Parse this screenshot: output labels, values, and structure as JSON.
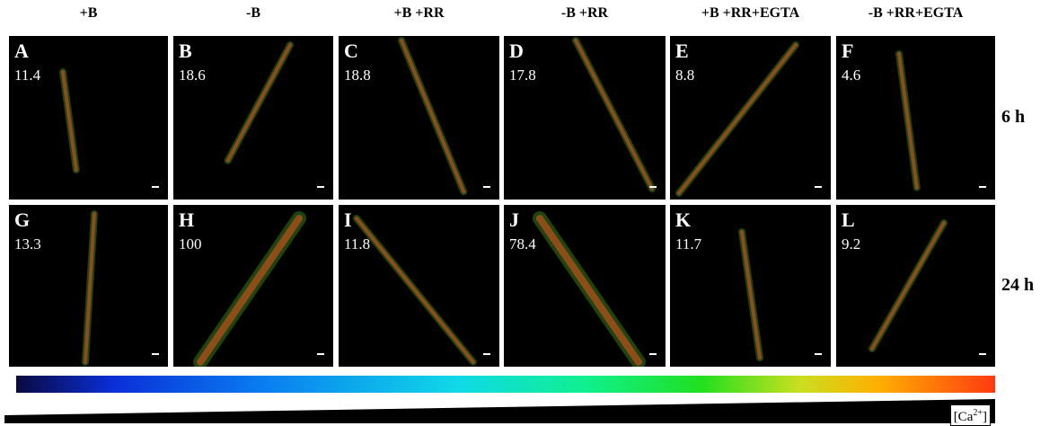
{
  "columns": [
    "+B",
    "-B",
    "+B +RR",
    "-B +RR",
    "+B +RR+EGTA",
    "-B +RR+EGTA"
  ],
  "rows": [
    {
      "label": "6 h",
      "panels": [
        {
          "letter": "A",
          "value": "11.4"
        },
        {
          "letter": "B",
          "value": "18.6"
        },
        {
          "letter": "C",
          "value": "18.8"
        },
        {
          "letter": "D",
          "value": "17.8"
        },
        {
          "letter": "E",
          "value": "8.8"
        },
        {
          "letter": "F",
          "value": "4.6"
        }
      ]
    },
    {
      "label": "24 h",
      "panels": [
        {
          "letter": "G",
          "value": "13.3"
        },
        {
          "letter": "H",
          "value": "100"
        },
        {
          "letter": "I",
          "value": "11.8"
        },
        {
          "letter": "J",
          "value": "78.4"
        },
        {
          "letter": "K",
          "value": "11.7"
        },
        {
          "letter": "L",
          "value": "9.2"
        }
      ]
    }
  ],
  "scale_label": {
    "prefix": "[Ca",
    "superscript": "2+",
    "suffix": "]"
  }
}
